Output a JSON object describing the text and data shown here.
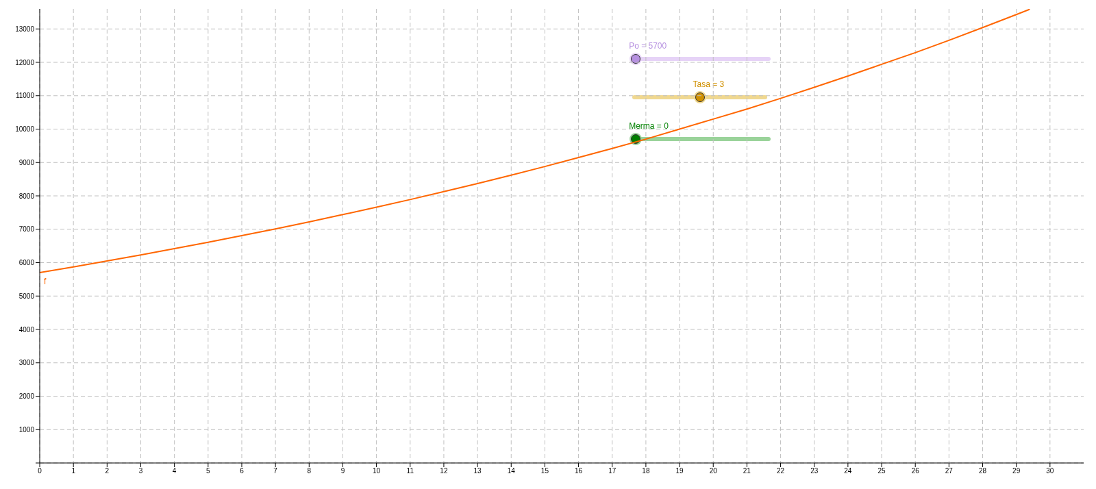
{
  "chart_data": {
    "type": "line",
    "x": [
      0,
      1,
      2,
      3,
      4,
      5,
      6,
      7,
      8,
      9,
      10,
      11,
      12,
      13,
      14,
      15,
      16,
      17,
      18,
      19,
      20,
      21,
      22,
      23,
      24,
      25,
      26,
      27,
      28,
      29,
      29.4
    ],
    "series": [
      {
        "name": "f",
        "color": "#ff6600",
        "values": [
          5700,
          5870,
          6050,
          6230,
          6420,
          6610,
          6810,
          7010,
          7220,
          7440,
          7660,
          7890,
          8130,
          8370,
          8620,
          8880,
          9150,
          9420,
          9700,
          10000,
          10300,
          10600,
          10920,
          11250,
          11590,
          11940,
          12290,
          12660,
          13040,
          13430,
          13590
        ]
      }
    ],
    "xlim": [
      0,
      31
    ],
    "xticks": [
      0,
      1,
      2,
      3,
      4,
      5,
      6,
      7,
      8,
      9,
      10,
      11,
      12,
      13,
      14,
      15,
      16,
      17,
      18,
      19,
      20,
      21,
      22,
      23,
      24,
      25,
      26,
      27,
      28,
      29,
      30
    ],
    "ylim": [
      0,
      13600
    ],
    "yticks": [
      {
        "value": 0,
        "label": null
      },
      1000,
      2000,
      3000,
      4000,
      5000,
      6000,
      7000,
      8000,
      9000,
      10000,
      11000,
      12000,
      13000
    ],
    "grid": true,
    "marker": "none",
    "line_style": "solid",
    "annotations": [
      "Po = 5700",
      "Tasa = 3",
      "Merma = 0"
    ]
  }
}
